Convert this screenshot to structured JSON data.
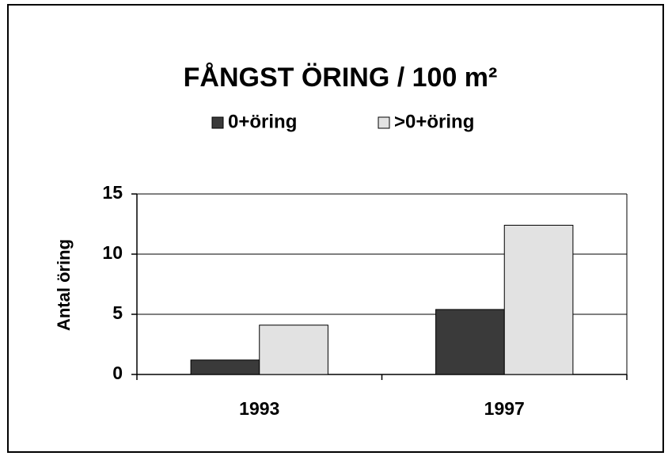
{
  "chart_data": {
    "type": "bar",
    "title": "FÅNGST ÖRING / 100 m²",
    "y_label": "Antal öring",
    "categories": [
      "1993",
      "1997"
    ],
    "series": [
      {
        "name": "0+öring",
        "color": "#3a3a3a",
        "values": [
          1.2,
          5.4
        ]
      },
      {
        "name": ">0+öring",
        "color": "#e2e2e2",
        "values": [
          4.1,
          12.4
        ]
      }
    ],
    "ylim": [
      0,
      15
    ],
    "yticks": [
      0,
      5,
      10,
      15
    ],
    "grid": true,
    "legend": "top"
  }
}
